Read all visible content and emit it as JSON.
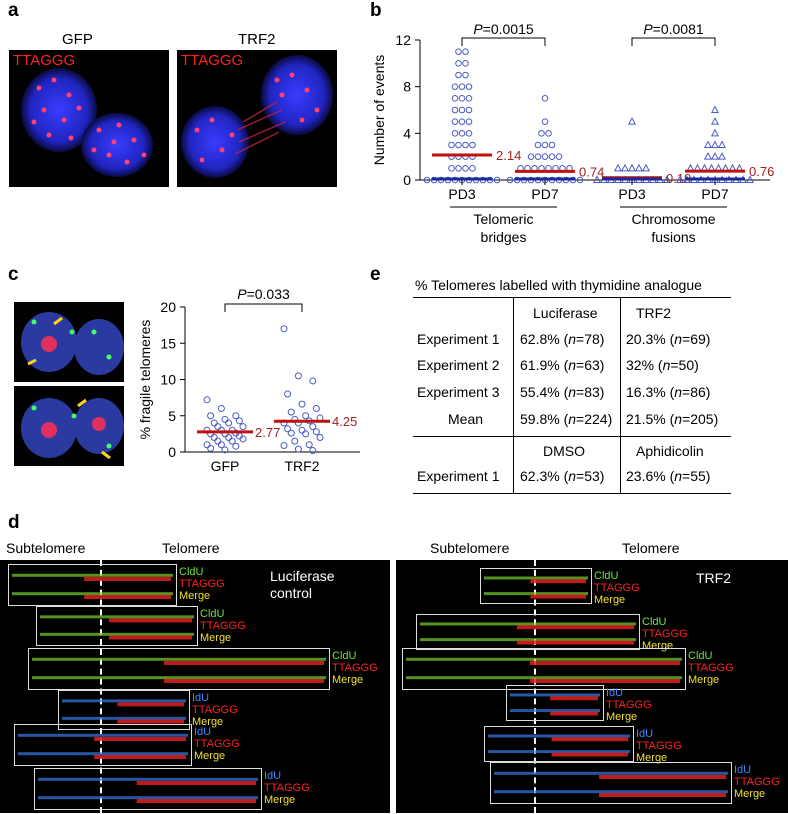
{
  "panels": {
    "a": "a",
    "b": "b",
    "c": "c",
    "d": "d",
    "e": "e"
  },
  "panel_a": {
    "left_title": "GFP",
    "right_title": "TRF2",
    "probe": "TTAGGG"
  },
  "panel_b": {
    "ylabel": "Number of events",
    "yticks": [
      "0",
      "4",
      "8",
      "12"
    ],
    "groups": [
      {
        "cat": "PD3",
        "mean": "2.14"
      },
      {
        "cat": "PD7",
        "mean": "0.74"
      },
      {
        "cat": "PD3",
        "mean": "0.19"
      },
      {
        "cat": "PD7",
        "mean": "0.76"
      }
    ],
    "group_labels": [
      "Telomeric\nbridges",
      "Chromosome\nfusions"
    ],
    "p_left": "P=0.0015",
    "p_right": "P=0.0081"
  },
  "panel_c": {
    "ylabel": "% fragile telomeres",
    "yticks": [
      "0",
      "5",
      "10",
      "15",
      "20"
    ],
    "categories": [
      "GFP",
      "TRF2"
    ],
    "means": [
      "2.77",
      "4.25"
    ],
    "p": "P=0.033"
  },
  "panel_e": {
    "title": "% Telomeres labelled with thymidine analogue",
    "header1": [
      "Luciferase",
      "TRF2"
    ],
    "rows1": [
      [
        "Experiment 1",
        "62.8% (n=78)",
        "20.3% (n=69)"
      ],
      [
        "Experiment 2",
        "61.9% (n=63)",
        "32% (n=50)"
      ],
      [
        "Experiment 3",
        "55.4% (n=83)",
        "16.3% (n=86)"
      ],
      [
        "Mean",
        "59.8% (n=224)",
        "21.5% (n=205)"
      ]
    ],
    "header2": [
      "DMSO",
      "Aphidicolin"
    ],
    "rows2": [
      [
        "Experiment 1",
        "62.3% (n=53)",
        "23.6% (n=55)"
      ]
    ]
  },
  "panel_d": {
    "left_sub": "Subtelomere",
    "left_tel": "Telomere",
    "left_cond": "Luciferase\ncontrol",
    "right_sub": "Subtelomere",
    "right_tel": "Telomere",
    "right_cond": "TRF2",
    "labels": {
      "cldu": "CldU",
      "idu": "IdU",
      "ttaggg": "TTAGGG",
      "merge": "Merge"
    }
  },
  "chart_data": [
    {
      "type": "scatter",
      "title": "",
      "ylabel": "Number of events",
      "ylim": [
        0,
        12
      ],
      "categories": [
        "PD3 Telomeric bridges",
        "PD7 Telomeric bridges",
        "PD3 Chromosome fusions",
        "PD7 Chromosome fusions"
      ],
      "means": [
        2.14,
        0.74,
        0.19,
        0.76
      ],
      "series": [
        {
          "values": [
            11,
            11,
            10,
            10,
            9,
            9,
            8,
            8,
            8,
            7,
            7,
            7,
            6,
            6,
            6,
            5,
            5,
            5,
            4,
            4,
            4,
            3,
            3,
            3,
            3,
            2,
            2,
            2,
            2,
            1,
            1,
            1,
            1,
            0,
            0,
            0,
            0,
            0,
            0,
            0,
            0,
            0,
            0,
            0,
            0,
            0
          ]
        },
        {
          "values": [
            7,
            5,
            4,
            4,
            3,
            3,
            3,
            2,
            2,
            2,
            2,
            2,
            1,
            1,
            1,
            1,
            1,
            1,
            1,
            1,
            0,
            0,
            0,
            0,
            0,
            0,
            0,
            0,
            0,
            0,
            0,
            0,
            0,
            0,
            0,
            0,
            0,
            0,
            0,
            0,
            0,
            0
          ]
        },
        {
          "values": [
            5,
            1,
            1,
            1,
            1,
            1,
            0,
            0,
            0,
            0,
            0,
            0,
            0,
            0,
            0,
            0,
            0,
            0,
            0,
            0,
            0,
            0,
            0,
            0,
            0,
            0,
            0,
            0,
            0,
            0
          ]
        },
        {
          "values": [
            6,
            5,
            4,
            3,
            3,
            3,
            2,
            2,
            2,
            1,
            1,
            1,
            1,
            1,
            1,
            1,
            1,
            0,
            0,
            0,
            0,
            0,
            0,
            0,
            0,
            0,
            0,
            0,
            0,
            0
          ]
        }
      ]
    },
    {
      "type": "scatter",
      "title": "",
      "ylabel": "% fragile telomeres",
      "ylim": [
        0,
        20
      ],
      "categories": [
        "GFP",
        "TRF2"
      ],
      "means": [
        2.77,
        4.25
      ],
      "series": [
        {
          "values": [
            7.2,
            6,
            5,
            5,
            4.5,
            4.3,
            4,
            4,
            3.5,
            3.5,
            3,
            3,
            3,
            2.6,
            2.5,
            2.5,
            2.2,
            2,
            2,
            1.8,
            1.5,
            1.5,
            1,
            1,
            0.8,
            0.5,
            0.3
          ]
        },
        {
          "values": [
            17,
            10.5,
            9.8,
            8,
            6.6,
            6,
            5.5,
            5,
            4.7,
            4.5,
            4.3,
            4,
            4,
            3.5,
            3.2,
            3,
            2.8,
            2.6,
            2.5,
            2,
            1.5,
            1,
            0.9,
            0.4,
            0.2
          ]
        }
      ]
    }
  ]
}
